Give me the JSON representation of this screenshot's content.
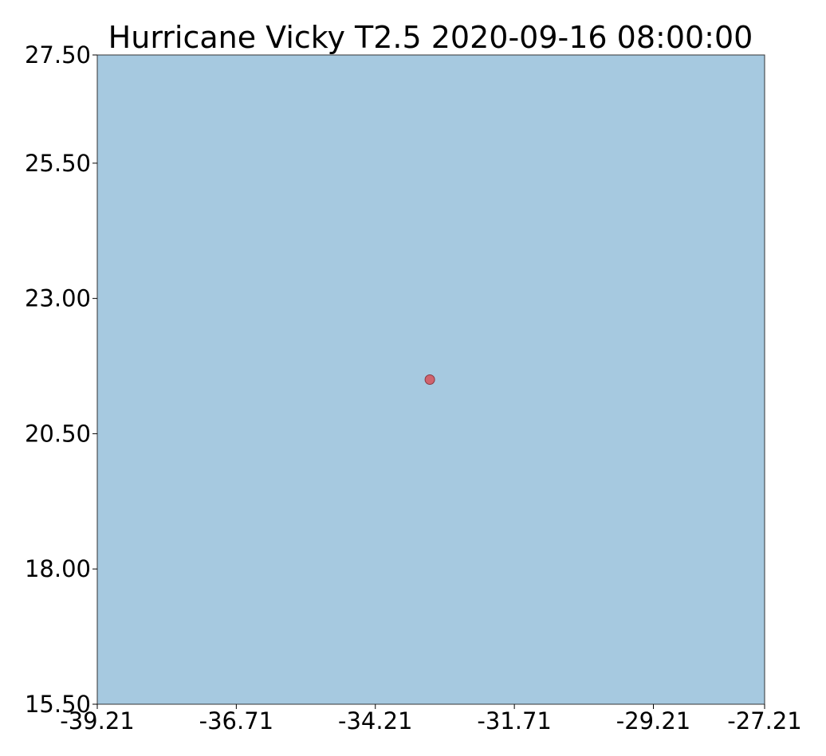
{
  "title": "Hurricane Vicky T2.5 2020-09-16 08:00:00",
  "colors": {
    "ocean": "#a6c9e0",
    "frame": "#333333",
    "marker_fill": "#d0636e",
    "marker_edge": "#8a3a44"
  },
  "chart_data": {
    "type": "scatter",
    "title": "Hurricane Vicky T2.5 2020-09-16 08:00:00",
    "xlabel": "",
    "ylabel": "",
    "xlim": [
      -39.21,
      -27.21
    ],
    "ylim": [
      15.5,
      27.5
    ],
    "x_ticks": [
      -39.21,
      -36.71,
      -34.21,
      -31.71,
      -29.21,
      -27.21
    ],
    "x_tick_labels": [
      "-39.21",
      "-36.71",
      "-34.21",
      "-31.71",
      "-29.21",
      "-27.21"
    ],
    "y_ticks": [
      15.5,
      18.0,
      20.5,
      23.0,
      25.5,
      27.5
    ],
    "y_tick_labels": [
      "15.50",
      "18.00",
      "20.50",
      "23.00",
      "25.50",
      "27.50"
    ],
    "grid": false,
    "points": [
      {
        "lon": -33.23,
        "lat": 21.5
      }
    ]
  }
}
